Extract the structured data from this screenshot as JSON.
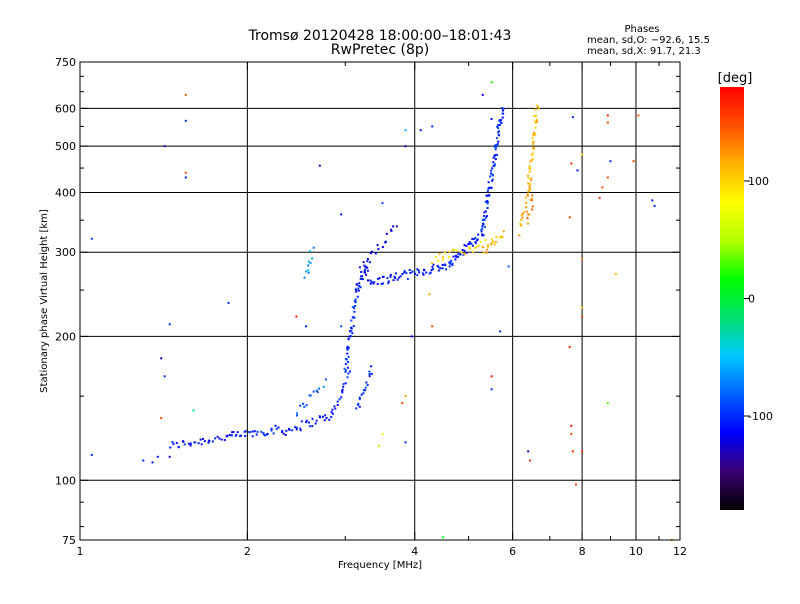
{
  "chart_data": {
    "type": "scatter",
    "title": "Tromsø 20120428 18:00:00–18:01:43",
    "subtitle": "RwPretec (8p)",
    "phases_box": {
      "heading": "Phases",
      "line1": "mean, sd,O: −92.6, 15.5",
      "line2": "mean, sd,X:  91.7, 21.3"
    },
    "xlabel": "Frequency [MHz]",
    "ylabel": "Stationary phase Virtual Height [km]",
    "x_scale": "log",
    "y_scale": "log",
    "xlim": [
      1,
      12
    ],
    "ylim": [
      75,
      750
    ],
    "x_ticks": [
      1,
      2,
      4,
      6,
      8,
      10,
      12
    ],
    "y_ticks": [
      75,
      100,
      200,
      300,
      400,
      500,
      600,
      750
    ],
    "x_grid": [
      2,
      4,
      6,
      8,
      10
    ],
    "y_grid": [
      100,
      200,
      300,
      400,
      500,
      600
    ],
    "grid": true,
    "colorbar": {
      "label": "[deg]",
      "ticks": [
        100,
        0,
        -100
      ],
      "range": [
        -180,
        180
      ],
      "colors": [
        "#000000",
        "#3a0070",
        "#0000ff",
        "#0060ff",
        "#00c8ff",
        "#00e070",
        "#00ff00",
        "#b4ff00",
        "#ffff00",
        "#ffb000",
        "#ff5000",
        "#ff0000"
      ]
    },
    "series": [
      {
        "segments": [
          {
            "f": [
              1.45,
              1.9
            ],
            "h": [
              118,
              124
            ],
            "phase": -110,
            "n": 34
          },
          {
            "f": [
              1.9,
              2.3
            ],
            "h": [
              124,
              128
            ],
            "phase": -105,
            "n": 28
          },
          {
            "f": [
              2.3,
              2.85
            ],
            "h": [
              126,
              137
            ],
            "phase": -110,
            "n": 30
          },
          {
            "f": [
              2.85,
              3.05
            ],
            "h": [
              137,
              170
            ],
            "phase": -105,
            "n": 18
          },
          {
            "f": [
              3.0,
              3.15
            ],
            "h": [
              170,
              250
            ],
            "phase": -100,
            "n": 38
          },
          {
            "f": [
              3.15,
              3.3
            ],
            "h": [
              250,
              285
            ],
            "phase": -110,
            "n": 22
          },
          {
            "f": [
              3.3,
              4.6
            ],
            "h": [
              258,
              282
            ],
            "phase": -110,
            "n": 60
          },
          {
            "f": [
              4.6,
              5.3
            ],
            "h": [
              282,
              330
            ],
            "phase": -105,
            "n": 36
          },
          {
            "f": [
              5.3,
              5.75
            ],
            "h": [
              330,
              600
            ],
            "phase": -100,
            "n": 80
          },
          {
            "f": [
              2.45,
              2.75
            ],
            "h": [
              138,
              160
            ],
            "phase": -80,
            "n": 14
          },
          {
            "f": [
              3.15,
              3.35
            ],
            "h": [
              140,
              170
            ],
            "phase": -100,
            "n": 18
          },
          {
            "f": [
              2.55,
              2.62
            ],
            "h": [
              265,
              305
            ],
            "phase": -60,
            "n": 10
          },
          {
            "f": [
              3.2,
              3.7
            ],
            "h": [
              280,
              340
            ],
            "phase": -120,
            "n": 18
          },
          {
            "f": [
              4.3,
              5.5
            ],
            "h": [
              290,
              315
            ],
            "phase": 100,
            "n": 26
          },
          {
            "f": [
              5.3,
              5.8
            ],
            "h": [
              300,
              330
            ],
            "phase": 110,
            "n": 14
          },
          {
            "f": [
              6.2,
              6.45
            ],
            "h": [
              330,
              420
            ],
            "phase": 120,
            "n": 18
          },
          {
            "f": [
              6.4,
              6.65
            ],
            "h": [
              400,
              610
            ],
            "phase": 110,
            "n": 40
          },
          {
            "f": [
              6.4,
              6.55
            ],
            "h": [
              350,
              400
            ],
            "phase": 130,
            "n": 10
          }
        ],
        "isolated": [
          {
            "f": 1.05,
            "h": 320,
            "phase": -90
          },
          {
            "f": 1.05,
            "h": 113,
            "phase": -100
          },
          {
            "f": 1.3,
            "h": 110,
            "phase": -100
          },
          {
            "f": 1.35,
            "h": 109,
            "phase": -110
          },
          {
            "f": 1.38,
            "h": 112,
            "phase": -110
          },
          {
            "f": 1.45,
            "h": 112,
            "phase": -120
          },
          {
            "f": 1.4,
            "h": 180,
            "phase": -120
          },
          {
            "f": 1.45,
            "h": 212,
            "phase": -100
          },
          {
            "f": 1.42,
            "h": 165,
            "phase": -100
          },
          {
            "f": 1.42,
            "h": 500,
            "phase": -120
          },
          {
            "f": 1.55,
            "h": 565,
            "phase": -100
          },
          {
            "f": 1.55,
            "h": 640,
            "phase": 140
          },
          {
            "f": 1.55,
            "h": 430,
            "phase": -110
          },
          {
            "f": 1.55,
            "h": 440,
            "phase": 150
          },
          {
            "f": 1.4,
            "h": 135,
            "phase": 150
          },
          {
            "f": 1.6,
            "h": 140,
            "phase": -30
          },
          {
            "f": 1.85,
            "h": 235,
            "phase": -100
          },
          {
            "f": 2.45,
            "h": 220,
            "phase": 170
          },
          {
            "f": 2.55,
            "h": 210,
            "phase": -100
          },
          {
            "f": 2.7,
            "h": 455,
            "phase": -120
          },
          {
            "f": 2.95,
            "h": 360,
            "phase": -110
          },
          {
            "f": 2.95,
            "h": 210,
            "phase": -90
          },
          {
            "f": 3.5,
            "h": 380,
            "phase": -90
          },
          {
            "f": 3.85,
            "h": 500,
            "phase": -130
          },
          {
            "f": 3.85,
            "h": 540,
            "phase": -60
          },
          {
            "f": 3.95,
            "h": 200,
            "phase": -120
          },
          {
            "f": 3.85,
            "h": 120,
            "phase": -100
          },
          {
            "f": 3.85,
            "h": 150,
            "phase": 120
          },
          {
            "f": 3.8,
            "h": 145,
            "phase": 150
          },
          {
            "f": 3.5,
            "h": 125,
            "phase": 80
          },
          {
            "f": 3.45,
            "h": 118,
            "phase": 50
          },
          {
            "f": 4.1,
            "h": 540,
            "phase": -110
          },
          {
            "f": 4.3,
            "h": 550,
            "phase": -100
          },
          {
            "f": 4.3,
            "h": 210,
            "phase": 150
          },
          {
            "f": 4.5,
            "h": 76,
            "phase": 10
          },
          {
            "f": 4.25,
            "h": 245,
            "phase": 120
          },
          {
            "f": 5.3,
            "h": 640,
            "phase": -120
          },
          {
            "f": 5.5,
            "h": 570,
            "phase": -110
          },
          {
            "f": 5.5,
            "h": 680,
            "phase": 20
          },
          {
            "f": 5.5,
            "h": 165,
            "phase": 170
          },
          {
            "f": 5.5,
            "h": 155,
            "phase": -100
          },
          {
            "f": 5.9,
            "h": 280,
            "phase": -80
          },
          {
            "f": 5.7,
            "h": 205,
            "phase": -100
          },
          {
            "f": 6.4,
            "h": 115,
            "phase": -130
          },
          {
            "f": 6.45,
            "h": 110,
            "phase": 160
          },
          {
            "f": 7.7,
            "h": 575,
            "phase": -100
          },
          {
            "f": 7.65,
            "h": 460,
            "phase": 160
          },
          {
            "f": 7.6,
            "h": 355,
            "phase": 150
          },
          {
            "f": 7.6,
            "h": 190,
            "phase": 160
          },
          {
            "f": 7.65,
            "h": 130,
            "phase": 170
          },
          {
            "f": 7.65,
            "h": 125,
            "phase": 150
          },
          {
            "f": 7.7,
            "h": 115,
            "phase": 160
          },
          {
            "f": 7.8,
            "h": 98,
            "phase": 160
          },
          {
            "f": 7.85,
            "h": 445,
            "phase": -110
          },
          {
            "f": 8.0,
            "h": 480,
            "phase": 100
          },
          {
            "f": 8.0,
            "h": 230,
            "phase": 110
          },
          {
            "f": 8.0,
            "h": 220,
            "phase": 150
          },
          {
            "f": 8.0,
            "h": 290,
            "phase": 130
          },
          {
            "f": 8.0,
            "h": 115,
            "phase": 160
          },
          {
            "f": 8.6,
            "h": 390,
            "phase": 160
          },
          {
            "f": 8.7,
            "h": 410,
            "phase": 150
          },
          {
            "f": 8.9,
            "h": 580,
            "phase": 170
          },
          {
            "f": 8.9,
            "h": 560,
            "phase": 150
          },
          {
            "f": 8.9,
            "h": 430,
            "phase": 150
          },
          {
            "f": 8.9,
            "h": 145,
            "phase": 30
          },
          {
            "f": 9.0,
            "h": 465,
            "phase": -100
          },
          {
            "f": 9.2,
            "h": 270,
            "phase": 110
          },
          {
            "f": 9.9,
            "h": 465,
            "phase": 150
          },
          {
            "f": 10.1,
            "h": 580,
            "phase": 140
          },
          {
            "f": 10.7,
            "h": 385,
            "phase": -110
          },
          {
            "f": 10.8,
            "h": 375,
            "phase": -100
          },
          {
            "f": 11.6,
            "h": 75,
            "phase": 120
          }
        ]
      }
    ]
  }
}
